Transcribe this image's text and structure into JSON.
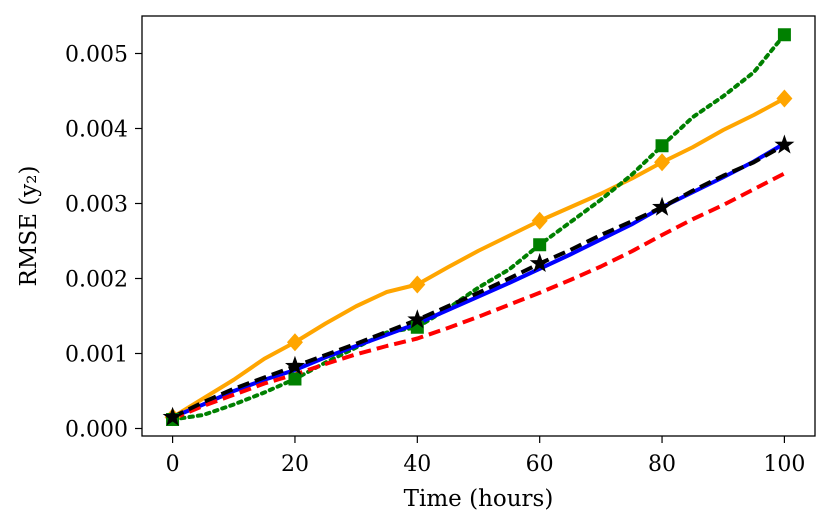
{
  "chart_data": {
    "type": "line",
    "xlabel": "Time (hours)",
    "ylabel": "RMSE (y₂)",
    "xlim": [
      -5,
      105
    ],
    "ylim": [
      -0.0001,
      0.0055
    ],
    "xticks": [
      0,
      20,
      40,
      60,
      80,
      100
    ],
    "yticks": [
      0.0,
      0.001,
      0.002,
      0.003,
      0.004,
      0.005
    ],
    "xtick_labels": [
      "0",
      "20",
      "40",
      "60",
      "80",
      "100"
    ],
    "ytick_labels": [
      "0.000",
      "0.001",
      "0.002",
      "0.003",
      "0.004",
      "0.005"
    ],
    "grid": false,
    "legend": "none",
    "series": [
      {
        "name": "orange-solid-diamond",
        "color": "#FFA500",
        "linestyle": "solid",
        "marker": "diamond",
        "x": [
          0,
          5,
          10,
          15,
          20,
          25,
          30,
          35,
          40,
          45,
          50,
          55,
          60,
          65,
          70,
          75,
          80,
          85,
          90,
          95,
          100
        ],
        "values": [
          0.00015,
          0.0004,
          0.00065,
          0.00093,
          0.00115,
          0.0014,
          0.00163,
          0.00182,
          0.00192,
          0.00215,
          0.00237,
          0.00257,
          0.00277,
          0.00295,
          0.00313,
          0.00333,
          0.00355,
          0.00375,
          0.00398,
          0.00418,
          0.0044
        ],
        "marker_x": [
          0,
          20,
          40,
          60,
          80,
          100
        ],
        "marker_values": [
          0.00015,
          0.00115,
          0.00192,
          0.00277,
          0.00355,
          0.0044
        ]
      },
      {
        "name": "green-dotted-square",
        "color": "#008000",
        "linestyle": "dotted",
        "marker": "square",
        "x": [
          0,
          5,
          10,
          15,
          20,
          25,
          30,
          35,
          40,
          45,
          50,
          55,
          60,
          65,
          70,
          75,
          80,
          85,
          90,
          95,
          100
        ],
        "values": [
          0.00012,
          0.00018,
          0.00032,
          0.00048,
          0.00066,
          0.00088,
          0.00108,
          0.00128,
          0.00135,
          0.0016,
          0.00188,
          0.00212,
          0.00245,
          0.00275,
          0.00305,
          0.00338,
          0.00377,
          0.00415,
          0.00443,
          0.00475,
          0.00525
        ],
        "marker_x": [
          0,
          20,
          40,
          60,
          80,
          100
        ],
        "marker_values": [
          0.00012,
          0.00066,
          0.00135,
          0.00245,
          0.00377,
          0.00525
        ]
      },
      {
        "name": "blue-solid",
        "color": "#0000FF",
        "linestyle": "solid",
        "marker": "none",
        "x": [
          0,
          5,
          10,
          15,
          20,
          25,
          30,
          35,
          40,
          45,
          50,
          55,
          60,
          65,
          70,
          75,
          80,
          85,
          90,
          95,
          100
        ],
        "values": [
          0.00015,
          0.00032,
          0.0005,
          0.00065,
          0.00078,
          0.00095,
          0.0011,
          0.00125,
          0.0014,
          0.00158,
          0.00176,
          0.00194,
          0.00213,
          0.00232,
          0.00252,
          0.00272,
          0.00295,
          0.00315,
          0.00335,
          0.00356,
          0.0038
        ],
        "marker_x": [],
        "marker_values": []
      },
      {
        "name": "red-dashed",
        "color": "#FF0000",
        "linestyle": "dashed",
        "marker": "none",
        "x": [
          0,
          5,
          10,
          15,
          20,
          25,
          30,
          35,
          40,
          45,
          50,
          55,
          60,
          65,
          70,
          75,
          80,
          85,
          90,
          95,
          100
        ],
        "values": [
          0.00013,
          0.0003,
          0.00045,
          0.0006,
          0.00072,
          0.00086,
          0.00099,
          0.0011,
          0.0012,
          0.00134,
          0.00149,
          0.00165,
          0.00181,
          0.00198,
          0.00216,
          0.00236,
          0.00258,
          0.00279,
          0.00298,
          0.00319,
          0.0034
        ],
        "marker_x": [],
        "marker_values": []
      },
      {
        "name": "black-dashed-star",
        "color": "#000000",
        "linestyle": "dashed",
        "marker": "star",
        "x": [
          0,
          5,
          10,
          15,
          20,
          25,
          30,
          35,
          40,
          45,
          50,
          55,
          60,
          65,
          70,
          75,
          80,
          85,
          90,
          95,
          100
        ],
        "values": [
          0.00015,
          0.00035,
          0.00053,
          0.00068,
          0.00083,
          0.00098,
          0.00113,
          0.00129,
          0.00145,
          0.00163,
          0.00181,
          0.002,
          0.0022,
          0.00238,
          0.00258,
          0.00276,
          0.00295,
          0.00317,
          0.00337,
          0.00355,
          0.00378
        ],
        "marker_x": [
          0,
          20,
          40,
          60,
          80,
          100
        ],
        "marker_values": [
          0.00015,
          0.00083,
          0.00145,
          0.0022,
          0.00295,
          0.00378
        ]
      }
    ]
  }
}
